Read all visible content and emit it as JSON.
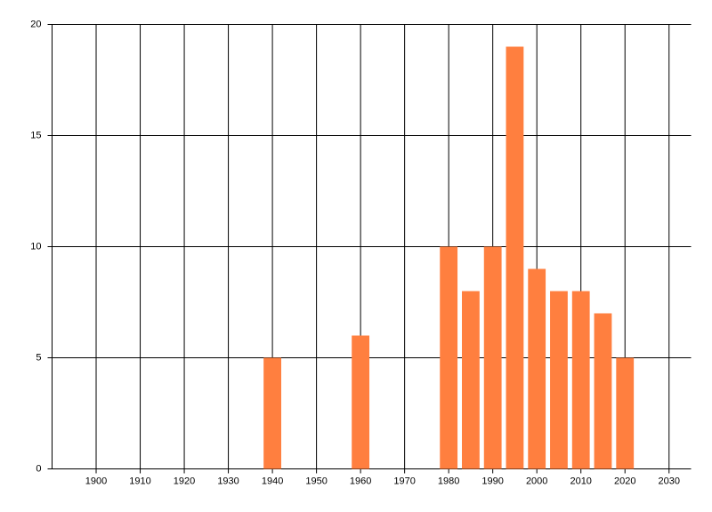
{
  "chart_data": {
    "type": "bar",
    "x": [
      1940,
      1960,
      1980,
      1985,
      1990,
      1995,
      2000,
      2005,
      2010,
      2015,
      2020
    ],
    "values": [
      5,
      6,
      10,
      8,
      10,
      19,
      9,
      8,
      8,
      7,
      5
    ],
    "color": "#ff7f3f",
    "xlim": [
      1890,
      2035
    ],
    "xticks": [
      1900,
      1910,
      1920,
      1930,
      1940,
      1950,
      1960,
      1970,
      1980,
      1990,
      2000,
      2010,
      2020,
      2030
    ],
    "ylim": [
      0,
      20
    ],
    "yticks": [
      0,
      5,
      10,
      15,
      20
    ],
    "grid": true
  }
}
